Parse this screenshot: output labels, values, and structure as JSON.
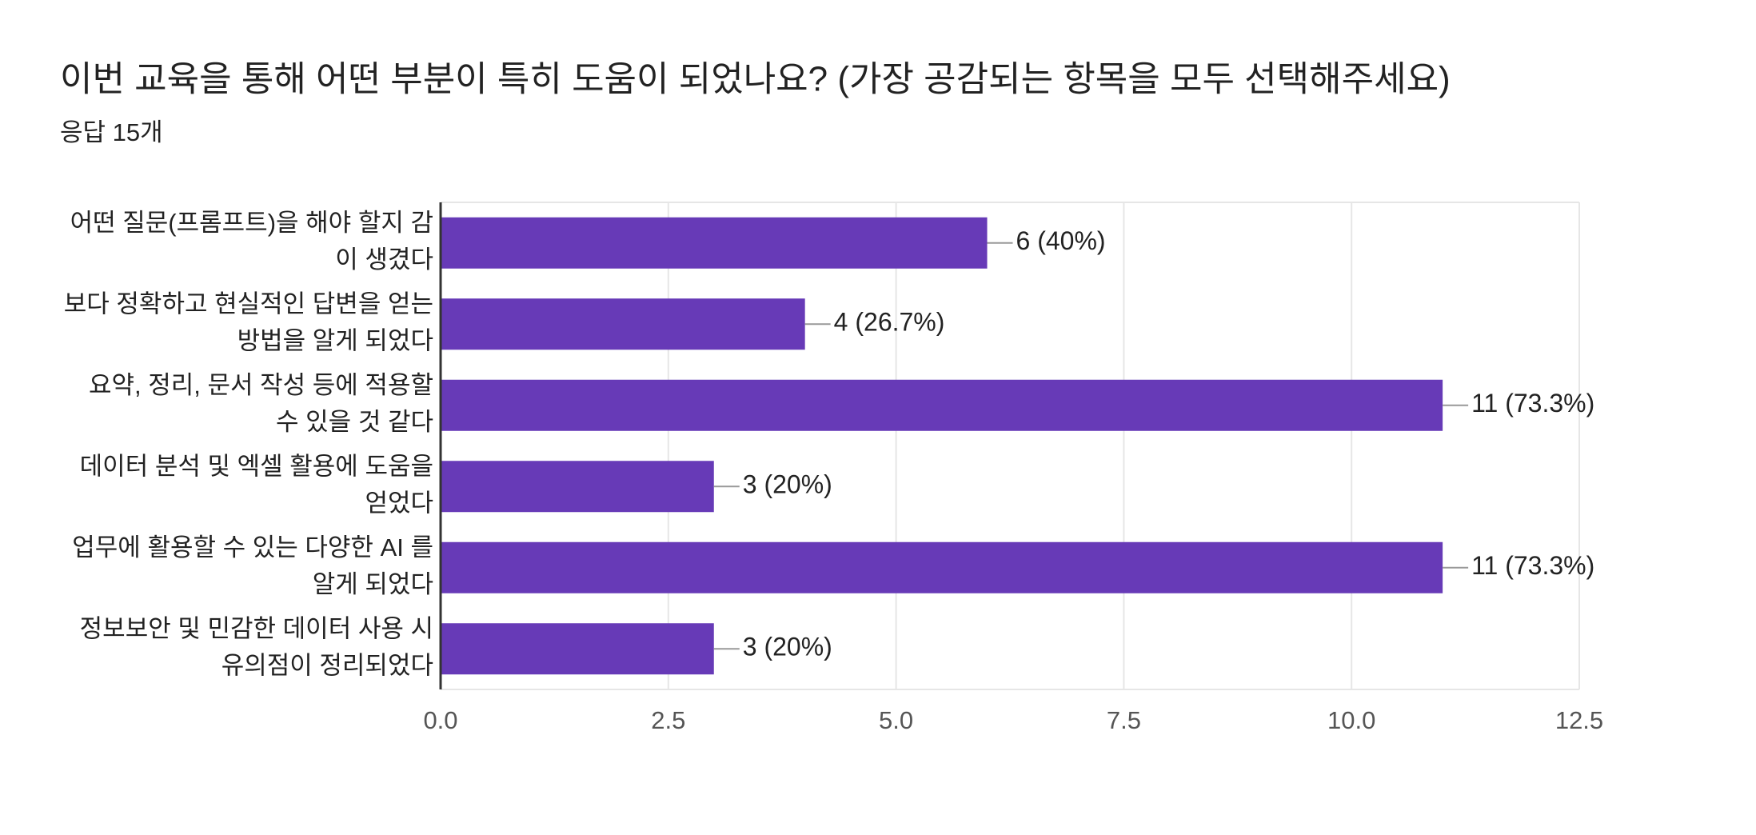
{
  "chart_data": {
    "type": "bar",
    "orientation": "horizontal",
    "title": "이번 교육을 통해 어떤 부분이 특히 도움이 되었나요? (가장 공감되는 항목을 모두 선택해주세요)",
    "subtitle": "응답 15개",
    "categories": [
      [
        "어떤 질문(프롬프트)을 해야 할지 감",
        "이 생겼다"
      ],
      [
        "보다 정확하고 현실적인 답변을 얻는",
        "방법을 알게 되었다"
      ],
      [
        "요약, 정리, 문서 작성 등에 적용할",
        "수 있을 것 같다"
      ],
      [
        "데이터 분석 및 엑셀 활용에 도움을",
        "얻었다"
      ],
      [
        "업무에 활용할 수 있는 다양한 AI 를",
        "알게 되었다"
      ],
      [
        "정보보안 및 민감한 데이터 사용 시",
        "유의점이 정리되었다"
      ]
    ],
    "values": [
      6,
      4,
      11,
      3,
      11,
      3
    ],
    "value_labels": [
      "6 (40%)",
      "4 (26.7%)",
      "11 (73.3%)",
      "3 (20%)",
      "11 (73.3%)",
      "3 (20%)"
    ],
    "color": "#673ab7",
    "xlim": [
      0,
      12.5
    ],
    "xticks": [
      {
        "value": 0,
        "label": "0.0"
      },
      2.5,
      {
        "value": 5,
        "label": "5.0"
      },
      7.5,
      {
        "value": 10,
        "label": "10.0"
      },
      12.5
    ],
    "grid": true
  }
}
